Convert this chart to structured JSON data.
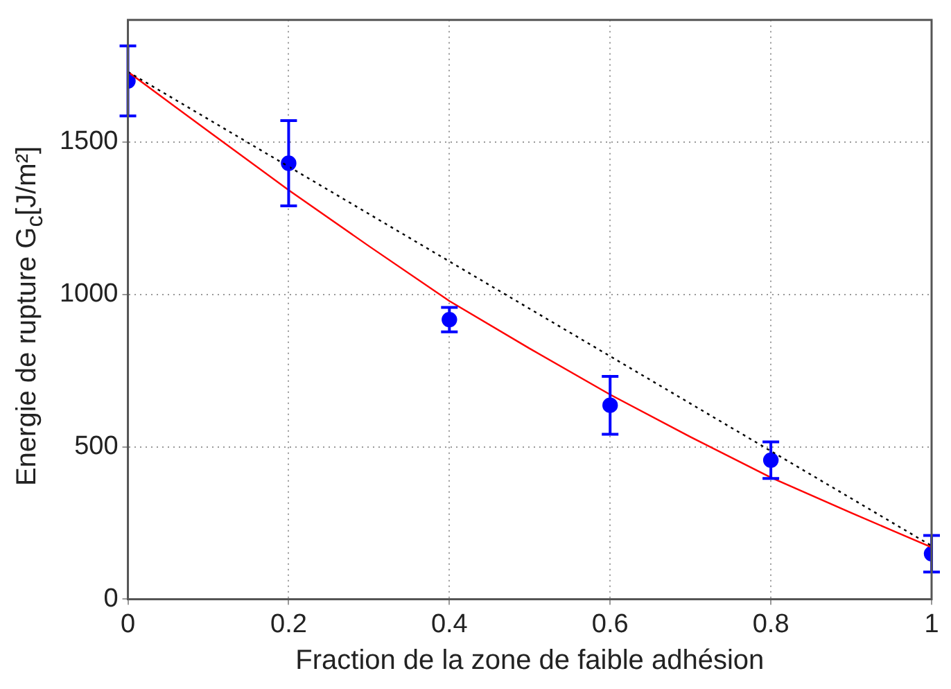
{
  "chart_data": {
    "type": "scatter",
    "xlabel": "Fraction de la zone de faible adhésion",
    "ylabel": "Energie de rupture G$_{c}$[J/m²]",
    "xlim": [
      0,
      1
    ],
    "xticks": [
      0,
      0.2,
      0.4,
      0.6,
      0.8,
      1
    ],
    "ylim": [
      0,
      1900
    ],
    "yticks": [
      0,
      500,
      1000,
      1500
    ],
    "grid": true,
    "legend": false,
    "series": [
      {
        "type": "line",
        "color": "#000000",
        "line_style": "dotted",
        "marker": "none",
        "x": [
          0,
          1
        ],
        "values": [
          1730,
          175
        ]
      },
      {
        "type": "line",
        "color": "#ff0000",
        "line_style": "solid",
        "marker": "none",
        "x": [
          0,
          0.1,
          0.2,
          0.3,
          0.4,
          0.5,
          0.6,
          0.7,
          0.8,
          0.9,
          1
        ],
        "values": [
          1730,
          1535,
          1342,
          1158,
          978,
          822,
          671,
          532,
          399,
          283,
          170
        ]
      },
      {
        "color": "#0000ff",
        "marker": "circle",
        "x": [
          0,
          0.2,
          0.4,
          0.6,
          0.8,
          1
        ],
        "values": [
          1700,
          1430,
          917,
          636,
          456,
          149
        ],
        "errors": [
          115,
          140,
          40,
          95,
          60,
          60
        ]
      }
    ]
  }
}
